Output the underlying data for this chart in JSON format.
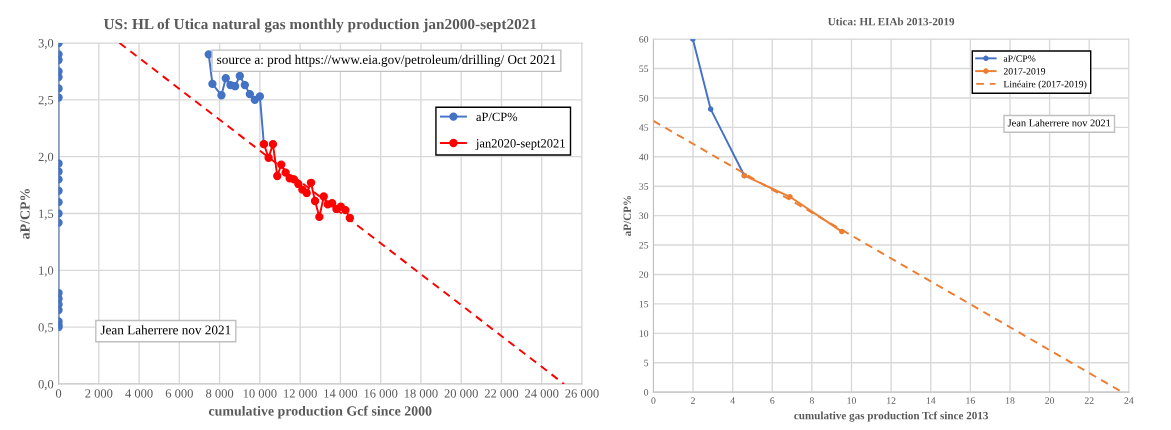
{
  "chart_data": [
    {
      "type": "line",
      "title": "US: HL of Utica natural gas monthly production jan2000-sept2021",
      "xlabel": "cumulative production Gcf since 2000",
      "ylabel": "aP/CP%",
      "xlim": [
        0,
        26000
      ],
      "xticks": [
        0,
        {
          "value": 2000,
          "label": "2 000"
        },
        {
          "value": 4000,
          "label": "4 000"
        },
        {
          "value": 6000,
          "label": "6 000"
        },
        {
          "value": 8000,
          "label": "8 000"
        },
        {
          "value": 10000,
          "label": "10 000"
        },
        {
          "value": 12000,
          "label": "12 000"
        },
        {
          "value": 14000,
          "label": "14 000"
        },
        {
          "value": 16000,
          "label": "16 000"
        },
        {
          "value": 18000,
          "label": "18 000"
        },
        {
          "value": 20000,
          "label": "20 000"
        },
        {
          "value": 22000,
          "label": "22 000"
        },
        {
          "value": 24000,
          "label": "24 000"
        },
        {
          "value": 26000,
          "label": "26 000"
        }
      ],
      "ylim": [
        0,
        3
      ],
      "yticks": [
        {
          "value": 0,
          "label": "0,0"
        },
        {
          "value": 0.5,
          "label": "0,5"
        },
        {
          "value": 1,
          "label": "1,0"
        },
        {
          "value": 1.5,
          "label": "1,5"
        },
        {
          "value": 2,
          "label": "2,0"
        },
        {
          "value": 2.5,
          "label": "2,5"
        },
        {
          "value": 3,
          "label": "3,0"
        }
      ],
      "grid": true,
      "legend": "top right",
      "annotations": [
        "source a: prod https://www.eia.gov/petroleum/drilling/ Oct 2021",
        "Jean Laherrere nov 2021"
      ],
      "series": [
        {
          "name": "aP/CP%",
          "color": "#4472c4",
          "marker": "circle",
          "line_style": "solid",
          "x": [
            0,
            0,
            0,
            0,
            0,
            0,
            0,
            0,
            0,
            0,
            0,
            0,
            0,
            0,
            0,
            0,
            0,
            0,
            0,
            0,
            0,
            null,
            7459,
            7643,
            8092,
            8306,
            8540,
            8770,
            9004,
            9253,
            9502,
            9751,
            10000,
            10199
          ],
          "values": [
            0.5,
            0.52,
            0.55,
            0.65,
            0.7,
            0.75,
            0.8,
            1.42,
            1.5,
            1.6,
            1.7,
            1.8,
            1.87,
            1.94,
            2.52,
            2.6,
            2.7,
            2.75,
            2.85,
            2.9,
            3.0,
            null,
            2.9,
            2.64,
            2.54,
            2.69,
            2.63,
            2.62,
            2.71,
            2.63,
            2.55,
            2.5,
            2.53,
            2.11
          ]
        },
        {
          "name": "jan2020-sept2021",
          "color": "#ff0000",
          "marker": "circle",
          "line_style": "solid",
          "x": [
            10199,
            10433,
            10648,
            10864,
            11063,
            11280,
            11480,
            11694,
            11910,
            12110,
            12326,
            12541,
            12740,
            12955,
            13174,
            13373,
            13588,
            13803,
            14022,
            14252,
            14470
          ],
          "values": [
            2.11,
            1.99,
            2.11,
            1.83,
            1.93,
            1.86,
            1.81,
            1.8,
            1.76,
            1.71,
            1.68,
            1.77,
            1.61,
            1.47,
            1.65,
            1.58,
            1.59,
            1.54,
            1.56,
            1.53,
            1.46
          ]
        },
        {
          "color": "#ff0000",
          "marker": "none",
          "line_style": "dashed",
          "x": [
            3030,
            25110
          ],
          "values": [
            3.0,
            0.0
          ]
        }
      ]
    },
    {
      "type": "line",
      "title": "Utica: HL EIAb 2013-2019",
      "xlabel": "cumulative gas production Tcf since 2013",
      "ylabel": "aP/CP%",
      "xlim": [
        0,
        24
      ],
      "xticks": [
        0,
        2,
        4,
        6,
        8,
        10,
        12,
        14,
        16,
        18,
        20,
        22,
        24
      ],
      "ylim": [
        0,
        60
      ],
      "yticks": [
        0,
        5,
        10,
        15,
        20,
        25,
        30,
        35,
        40,
        45,
        50,
        55,
        60
      ],
      "grid": true,
      "legend": "top right",
      "annotations": [
        "Jean Laherrere nov 2021"
      ],
      "series": [
        {
          "name": "aP/CP%",
          "color": "#4472c4",
          "marker": "circle",
          "line_style": "solid",
          "x": [
            1.99,
            2.89,
            4.59
          ],
          "values": [
            60,
            48.1,
            36.8
          ]
        },
        {
          "name": "2017-2019",
          "color": "#ed7d31",
          "marker": "circle",
          "line_style": "solid",
          "x": [
            4.59,
            6.89,
            9.51
          ],
          "values": [
            36.8,
            33.2,
            27.3
          ]
        },
        {
          "name": "Linéaire (2017-2019)",
          "color": "#ed7d31",
          "marker": "none",
          "line_style": "dashed",
          "x": [
            0,
            23.67
          ],
          "values": [
            46.1,
            0
          ]
        }
      ]
    }
  ]
}
